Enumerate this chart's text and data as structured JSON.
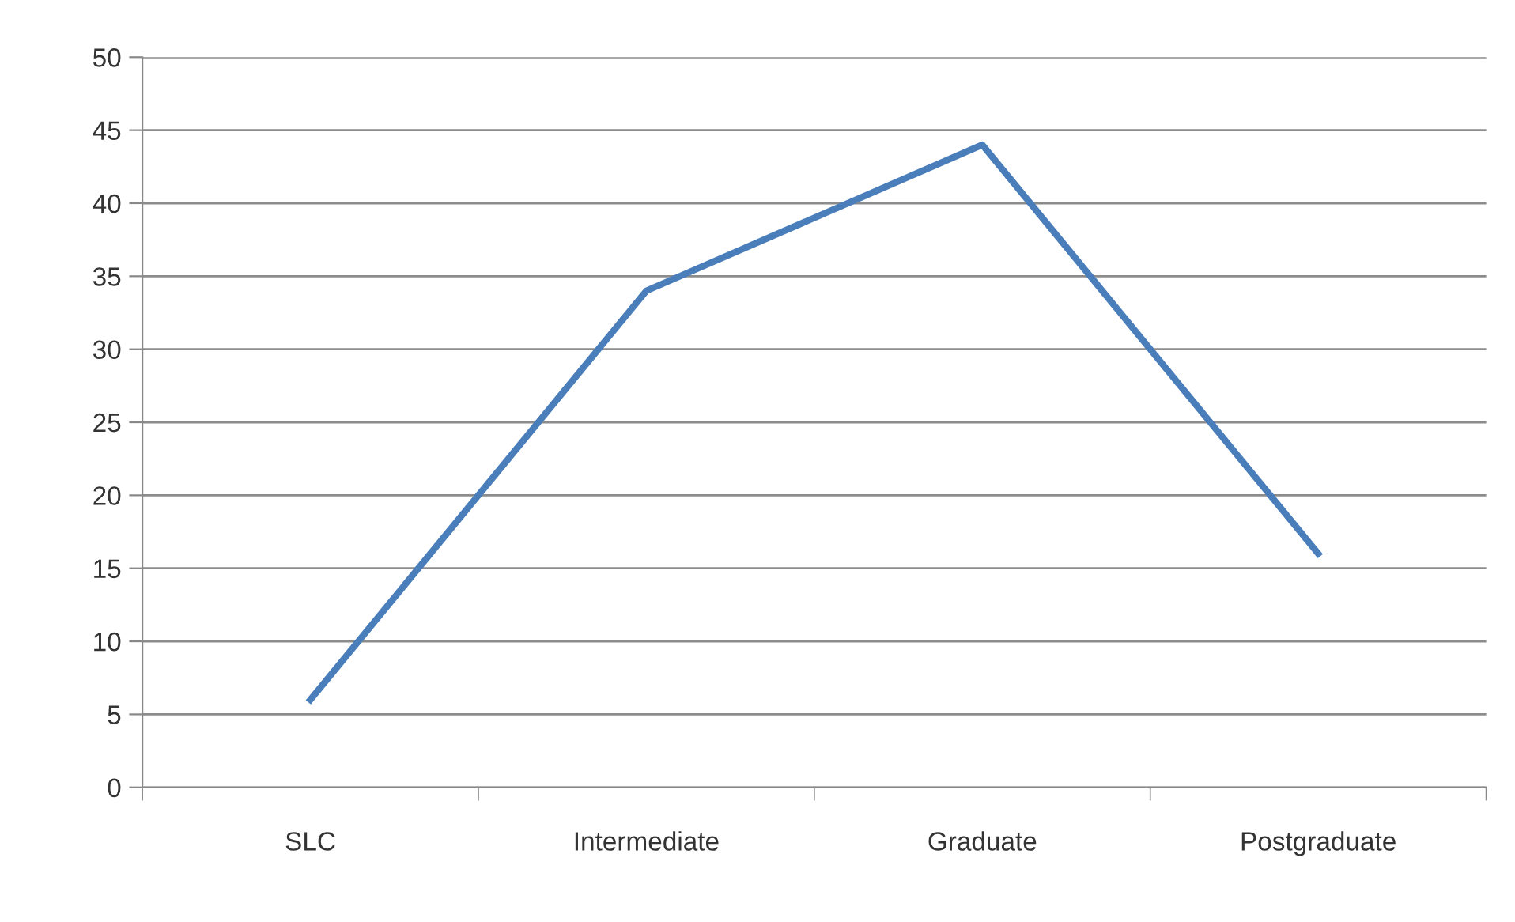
{
  "chart_data": {
    "type": "line",
    "categories": [
      "SLC",
      "Intermediate",
      "Graduate",
      "Postgraduate"
    ],
    "series": [
      {
        "color": "#4a7ebb",
        "values": [
          6,
          34,
          44,
          16
        ]
      }
    ],
    "ylim": [
      0,
      50
    ],
    "yticks": [
      0,
      5,
      10,
      15,
      20,
      25,
      30,
      35,
      40,
      45,
      50
    ],
    "grid": "y",
    "legend": false,
    "marker": "none",
    "line_style": "solid"
  }
}
